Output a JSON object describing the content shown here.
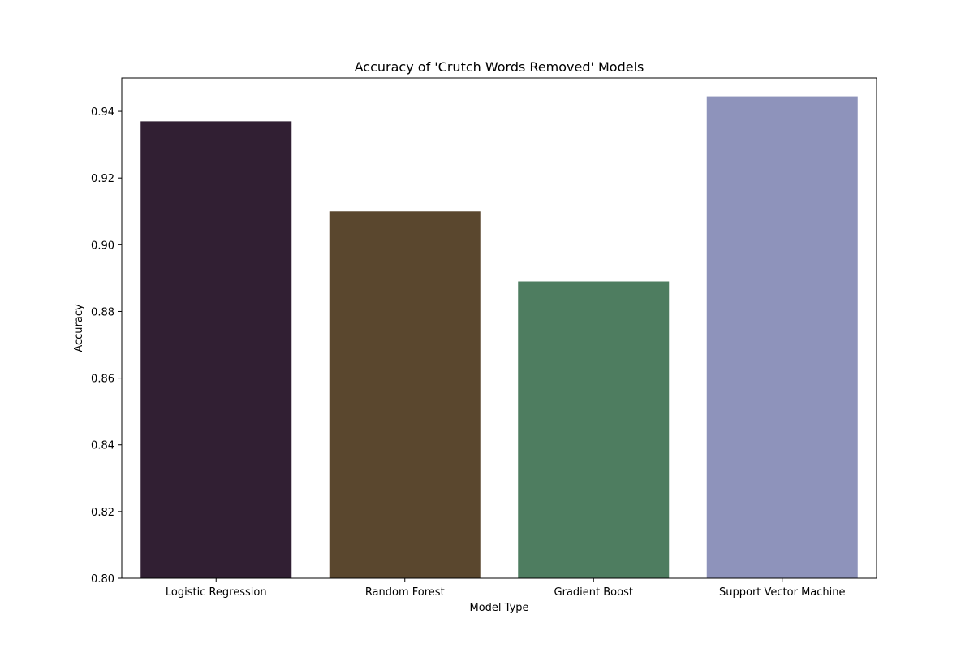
{
  "chart_data": {
    "type": "bar",
    "title": "Accuracy of 'Crutch Words Removed' Models",
    "xlabel": "Model Type",
    "ylabel": "Accuracy",
    "categories": [
      "Logistic Regression",
      "Random Forest",
      "Gradient Boost",
      "Support Vector Machine"
    ],
    "values": [
      0.937,
      0.91,
      0.889,
      0.9445
    ],
    "colors": [
      "#311f33",
      "#5a472e",
      "#4e7d60",
      "#8e93bb"
    ],
    "ylim": [
      0.8,
      0.95
    ],
    "yticks": [
      0.8,
      0.82,
      0.84,
      0.86,
      0.88,
      0.9,
      0.92,
      0.94
    ],
    "ytick_labels": [
      "0.80",
      "0.82",
      "0.84",
      "0.86",
      "0.88",
      "0.90",
      "0.92",
      "0.94"
    ],
    "grid": false,
    "legend": "none"
  }
}
